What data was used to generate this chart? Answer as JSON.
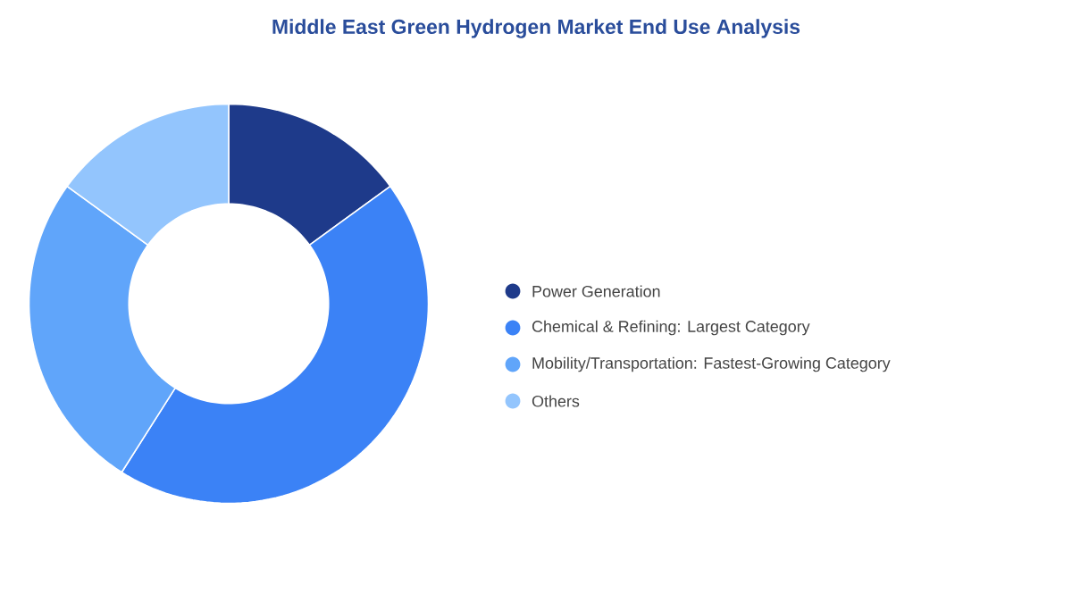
{
  "chart_data": {
    "type": "donut",
    "title": "Middle East Green Hydrogen Market End Use Analysis",
    "categories": [
      "Power Generation",
      "Chemical & Refining:  Largest Category",
      "Mobility/Transportation:  Fastest-Growing Category",
      "Others"
    ],
    "values": [
      15,
      44,
      26,
      15
    ],
    "colors": [
      "#1e3a8a",
      "#3b82f6",
      "#60a5fa",
      "#93c5fd"
    ],
    "legend": "right"
  }
}
